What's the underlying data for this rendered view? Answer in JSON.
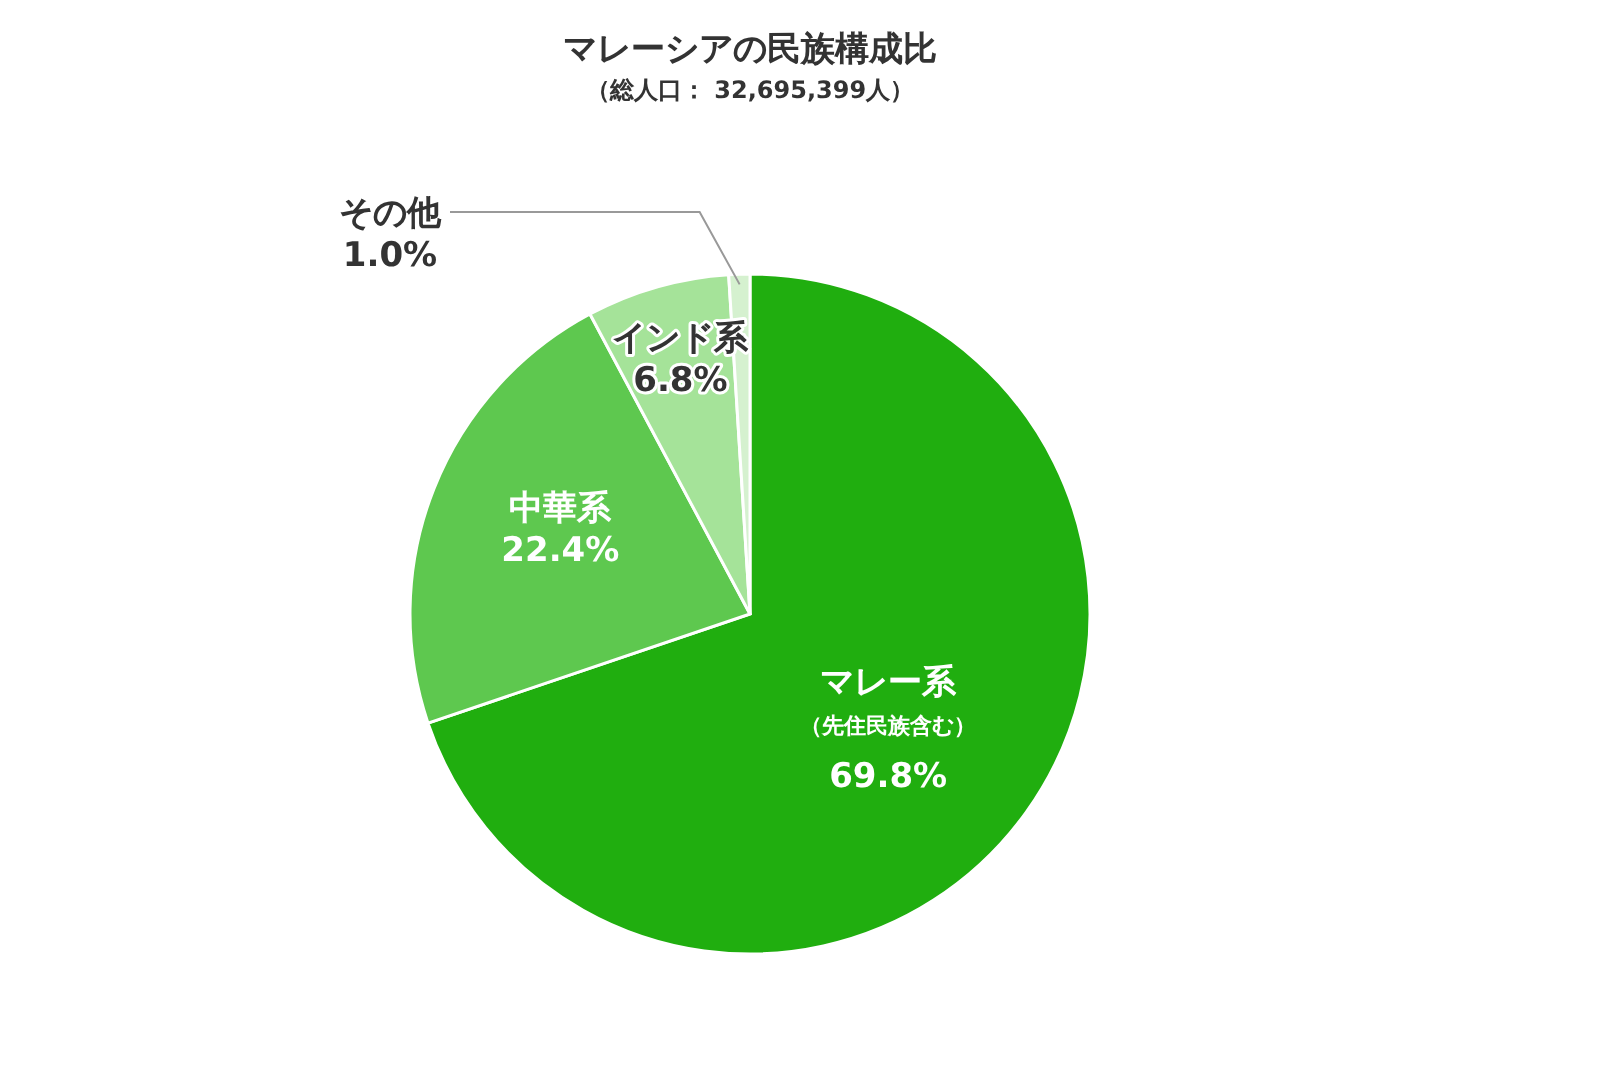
{
  "chart_data": {
    "type": "pie",
    "title": "マレーシアの民族構成比",
    "subtitle": "（総人口： 32,695,399人）",
    "categories": [
      "マレー系（先住民族含む）",
      "中華系",
      "インド系",
      "その他"
    ],
    "values": [
      69.8,
      22.4,
      6.8,
      1.0
    ],
    "colors": [
      "#20ae0f",
      "#5ec84f",
      "#a5e399",
      "#d5f1cf"
    ],
    "value_labels": [
      "69.8%",
      "22.4%",
      "6.8%",
      "1.0%"
    ]
  }
}
